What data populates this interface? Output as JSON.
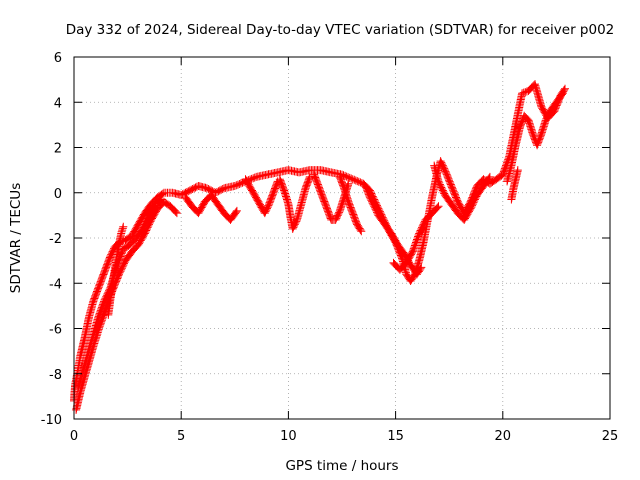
{
  "chart_data": {
    "type": "scatter",
    "title": "Day 332 of 2024, Sidereal Day-to-day VTEC variation (SDTVAR) for receiver p002",
    "xlabel": "GPS time / hours",
    "ylabel": "SDTVAR / TECUs",
    "xlim": [
      0,
      25
    ],
    "ylim": [
      -10,
      6
    ],
    "xticks": [
      0,
      5,
      10,
      15,
      20,
      25
    ],
    "yticks": [
      -10,
      -8,
      -6,
      -4,
      -2,
      0,
      2,
      4,
      6
    ],
    "grid": true,
    "marker": "plus",
    "series": [
      {
        "color": "#ff0000",
        "segments": [
          [
            [
              0.0,
              -9.2
            ],
            [
              0.05,
              -8.5
            ],
            [
              0.15,
              -8.0
            ],
            [
              0.3,
              -7.2
            ],
            [
              0.5,
              -6.4
            ],
            [
              0.7,
              -5.5
            ],
            [
              0.9,
              -4.8
            ],
            [
              1.1,
              -4.3
            ],
            [
              1.3,
              -3.8
            ],
            [
              1.5,
              -3.3
            ],
            [
              1.7,
              -2.8
            ],
            [
              1.9,
              -2.4
            ],
            [
              2.1,
              -2.2
            ],
            [
              2.4,
              -2.1
            ],
            [
              2.7,
              -1.9
            ],
            [
              3.0,
              -1.4
            ],
            [
              3.3,
              -0.9
            ],
            [
              3.6,
              -0.5
            ],
            [
              3.9,
              -0.2
            ],
            [
              4.2,
              0.0
            ],
            [
              4.6,
              0.0
            ],
            [
              5.0,
              -0.1
            ],
            [
              5.4,
              0.1
            ],
            [
              5.8,
              0.3
            ],
            [
              6.2,
              0.2
            ],
            [
              6.6,
              0.0
            ],
            [
              7.0,
              0.2
            ],
            [
              7.5,
              0.3
            ],
            [
              8.0,
              0.5
            ],
            [
              8.5,
              0.7
            ],
            [
              9.0,
              0.8
            ],
            [
              9.5,
              0.9
            ],
            [
              10.0,
              1.0
            ],
            [
              10.5,
              0.9
            ],
            [
              11.0,
              1.0
            ],
            [
              11.5,
              1.0
            ],
            [
              12.0,
              0.9
            ],
            [
              12.5,
              0.8
            ],
            [
              13.0,
              0.6
            ],
            [
              13.5,
              0.4
            ],
            [
              13.8,
              0.1
            ],
            [
              14.1,
              -0.5
            ],
            [
              14.4,
              -1.1
            ],
            [
              14.7,
              -1.7
            ],
            [
              15.0,
              -2.2
            ],
            [
              15.3,
              -2.9
            ],
            [
              15.5,
              -3.6
            ],
            [
              15.7,
              -3.9
            ],
            [
              15.9,
              -3.6
            ],
            [
              16.1,
              -3.0
            ],
            [
              16.3,
              -2.2
            ],
            [
              16.5,
              -1.2
            ],
            [
              16.7,
              -0.2
            ],
            [
              16.9,
              0.7
            ],
            [
              17.1,
              1.4
            ],
            [
              17.3,
              1.0
            ],
            [
              17.6,
              0.3
            ],
            [
              17.9,
              -0.4
            ],
            [
              18.2,
              -0.9
            ],
            [
              18.5,
              -0.4
            ],
            [
              18.8,
              0.3
            ],
            [
              19.1,
              0.6
            ],
            [
              19.4,
              0.4
            ],
            [
              19.7,
              0.6
            ],
            [
              20.0,
              0.8
            ],
            [
              20.3,
              1.6
            ],
            [
              20.6,
              3.0
            ],
            [
              20.9,
              4.4
            ],
            [
              21.2,
              4.5
            ],
            [
              21.5,
              4.8
            ],
            [
              21.8,
              3.8
            ],
            [
              22.1,
              3.3
            ],
            [
              22.4,
              3.6
            ],
            [
              22.7,
              4.3
            ],
            [
              22.9,
              4.6
            ]
          ],
          [
            [
              0.1,
              -9.6
            ],
            [
              0.3,
              -8.8
            ],
            [
              0.6,
              -7.8
            ],
            [
              0.9,
              -6.8
            ],
            [
              1.2,
              -5.9
            ],
            [
              1.5,
              -5.1
            ],
            [
              1.8,
              -4.3
            ],
            [
              2.1,
              -3.6
            ],
            [
              2.4,
              -3.0
            ],
            [
              2.7,
              -2.6
            ],
            [
              3.0,
              -2.3
            ],
            [
              3.3,
              -1.8
            ],
            [
              3.6,
              -1.2
            ],
            [
              3.9,
              -0.7
            ],
            [
              4.2,
              -0.4
            ],
            [
              4.5,
              -0.6
            ],
            [
              4.8,
              -0.9
            ]
          ],
          [
            [
              0.2,
              -8.6
            ],
            [
              0.5,
              -7.6
            ],
            [
              0.8,
              -6.6
            ],
            [
              1.1,
              -5.6
            ],
            [
              1.4,
              -4.8
            ],
            [
              1.7,
              -4.2
            ],
            [
              2.0,
              -3.2
            ],
            [
              2.3,
              -2.5
            ],
            [
              2.6,
              -2.3
            ],
            [
              2.9,
              -2.0
            ],
            [
              3.2,
              -1.6
            ],
            [
              3.5,
              -1.0
            ],
            [
              3.8,
              -0.5
            ],
            [
              4.1,
              -0.3
            ]
          ],
          [
            [
              1.6,
              -5.4
            ],
            [
              1.8,
              -4.0
            ],
            [
              2.0,
              -2.8
            ],
            [
              2.2,
              -1.8
            ],
            [
              2.3,
              -1.5
            ]
          ],
          [
            [
              5.2,
              -0.2
            ],
            [
              5.5,
              -0.6
            ],
            [
              5.8,
              -0.9
            ],
            [
              6.1,
              -0.4
            ],
            [
              6.4,
              -0.1
            ],
            [
              6.7,
              -0.5
            ],
            [
              7.0,
              -0.9
            ],
            [
              7.3,
              -1.2
            ],
            [
              7.6,
              -0.8
            ]
          ],
          [
            [
              8.0,
              0.6
            ],
            [
              8.3,
              0.1
            ],
            [
              8.6,
              -0.4
            ],
            [
              8.9,
              -0.9
            ],
            [
              9.1,
              -0.5
            ],
            [
              9.3,
              0.0
            ],
            [
              9.5,
              0.5
            ]
          ],
          [
            [
              9.6,
              0.6
            ],
            [
              9.8,
              0.1
            ],
            [
              10.0,
              -0.5
            ],
            [
              10.1,
              -1.1
            ],
            [
              10.2,
              -1.6
            ],
            [
              10.4,
              -1.2
            ],
            [
              10.6,
              -0.5
            ],
            [
              10.8,
              0.2
            ],
            [
              11.0,
              0.7
            ]
          ],
          [
            [
              11.2,
              0.8
            ],
            [
              11.4,
              0.3
            ],
            [
              11.6,
              -0.2
            ],
            [
              11.8,
              -0.7
            ],
            [
              12.0,
              -1.2
            ],
            [
              12.2,
              -1.2
            ],
            [
              12.4,
              -0.8
            ],
            [
              12.6,
              -0.2
            ],
            [
              12.8,
              0.4
            ]
          ],
          [
            [
              12.4,
              0.7
            ],
            [
              12.6,
              0.2
            ],
            [
              12.8,
              -0.4
            ],
            [
              13.0,
              -0.9
            ],
            [
              13.2,
              -1.4
            ],
            [
              13.4,
              -1.7
            ]
          ],
          [
            [
              13.6,
              0.3
            ],
            [
              13.8,
              -0.2
            ],
            [
              14.0,
              -0.6
            ],
            [
              14.2,
              -1.0
            ],
            [
              14.5,
              -1.4
            ],
            [
              14.8,
              -1.8
            ],
            [
              15.1,
              -2.3
            ],
            [
              15.4,
              -2.7
            ],
            [
              15.7,
              -3.2
            ],
            [
              16.0,
              -3.6
            ],
            [
              16.2,
              -3.3
            ]
          ],
          [
            [
              14.9,
              -3.1
            ],
            [
              15.2,
              -3.4
            ],
            [
              15.5,
              -3.1
            ],
            [
              15.8,
              -2.6
            ],
            [
              16.1,
              -1.8
            ],
            [
              16.4,
              -1.2
            ],
            [
              16.7,
              -0.9
            ],
            [
              17.0,
              -0.6
            ]
          ],
          [
            [
              16.8,
              1.2
            ],
            [
              17.0,
              0.5
            ],
            [
              17.3,
              -0.1
            ],
            [
              17.6,
              -0.5
            ],
            [
              17.9,
              -0.9
            ],
            [
              18.2,
              -1.2
            ],
            [
              18.5,
              -0.7
            ],
            [
              18.8,
              -0.1
            ],
            [
              19.1,
              0.3
            ],
            [
              19.4,
              0.7
            ]
          ],
          [
            [
              20.2,
              0.5
            ],
            [
              20.4,
              1.2
            ],
            [
              20.6,
              2.1
            ],
            [
              20.8,
              2.9
            ],
            [
              21.0,
              3.4
            ],
            [
              21.2,
              3.2
            ],
            [
              21.4,
              2.6
            ],
            [
              21.6,
              2.1
            ],
            [
              21.8,
              2.6
            ],
            [
              22.0,
              3.2
            ],
            [
              22.2,
              3.6
            ],
            [
              22.5,
              4.0
            ],
            [
              22.8,
              4.4
            ]
          ],
          [
            [
              20.4,
              -0.3
            ],
            [
              20.5,
              0.2
            ],
            [
              20.7,
              1.0
            ]
          ]
        ]
      }
    ]
  }
}
